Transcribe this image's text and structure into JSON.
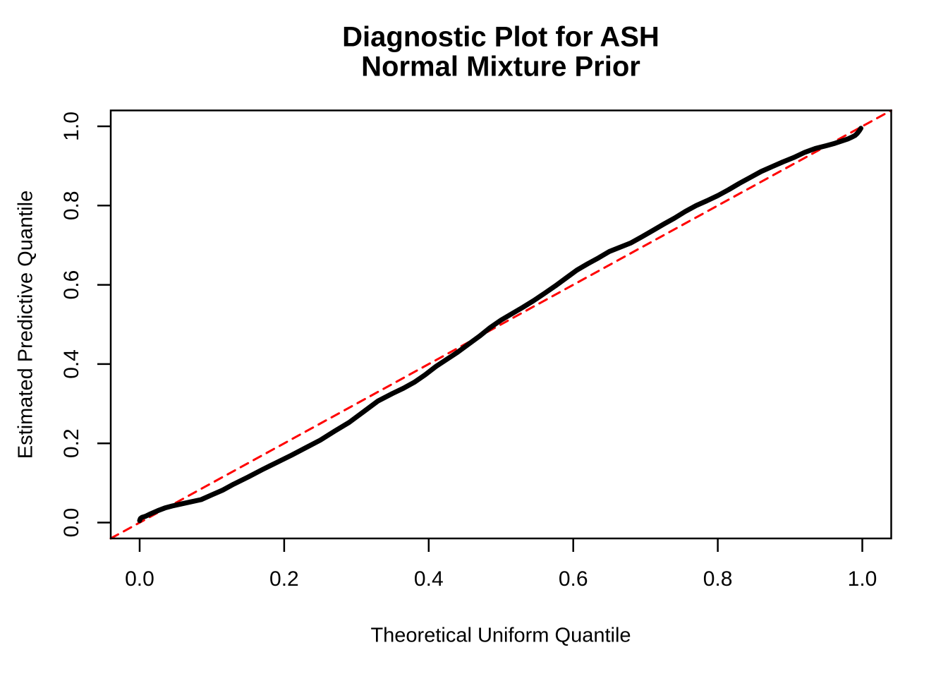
{
  "figure": {
    "background_color": "#ffffff",
    "title_line1": "Diagnostic Plot for ASH",
    "title_line2": "Normal Mixture Prior"
  },
  "chart_data": {
    "type": "line",
    "title": "Diagnostic Plot for ASH — Normal Mixture Prior",
    "title_lines": [
      "Diagnostic Plot for ASH",
      "Normal Mixture Prior"
    ],
    "xlabel": "Theoretical Uniform Quantile",
    "ylabel": "Estimated Predictive Quantile",
    "xlim": [
      -0.04,
      1.04
    ],
    "ylim": [
      -0.04,
      1.04
    ],
    "grid": false,
    "legend": "none",
    "x_ticks": [
      0.0,
      0.2,
      0.4,
      0.6,
      0.8,
      1.0
    ],
    "y_ticks": [
      0.0,
      0.2,
      0.4,
      0.6,
      0.8,
      1.0
    ],
    "x_tick_labels": [
      "0.0",
      "0.2",
      "0.4",
      "0.6",
      "0.8",
      "1.0"
    ],
    "y_tick_labels": [
      "0.0",
      "0.2",
      "0.4",
      "0.6",
      "0.8",
      "1.0"
    ],
    "axis_color": "#000000",
    "series": [
      {
        "name": "estimated-predictive-quantile-curve",
        "style": "solid",
        "color": "#000000",
        "stroke_width": 7,
        "points": [
          [
            0.0,
            0.005
          ],
          [
            0.001,
            0.01
          ],
          [
            0.003,
            0.013
          ],
          [
            0.008,
            0.016
          ],
          [
            0.015,
            0.022
          ],
          [
            0.025,
            0.03
          ],
          [
            0.035,
            0.037
          ],
          [
            0.045,
            0.042
          ],
          [
            0.055,
            0.046
          ],
          [
            0.07,
            0.052
          ],
          [
            0.085,
            0.058
          ],
          [
            0.1,
            0.07
          ],
          [
            0.115,
            0.082
          ],
          [
            0.13,
            0.097
          ],
          [
            0.15,
            0.115
          ],
          [
            0.17,
            0.134
          ],
          [
            0.19,
            0.152
          ],
          [
            0.21,
            0.17
          ],
          [
            0.23,
            0.189
          ],
          [
            0.25,
            0.208
          ],
          [
            0.27,
            0.231
          ],
          [
            0.29,
            0.253
          ],
          [
            0.31,
            0.28
          ],
          [
            0.33,
            0.307
          ],
          [
            0.35,
            0.326
          ],
          [
            0.365,
            0.339
          ],
          [
            0.38,
            0.354
          ],
          [
            0.395,
            0.373
          ],
          [
            0.41,
            0.394
          ],
          [
            0.425,
            0.412
          ],
          [
            0.44,
            0.43
          ],
          [
            0.455,
            0.45
          ],
          [
            0.47,
            0.47
          ],
          [
            0.485,
            0.492
          ],
          [
            0.5,
            0.511
          ],
          [
            0.515,
            0.527
          ],
          [
            0.53,
            0.543
          ],
          [
            0.545,
            0.56
          ],
          [
            0.56,
            0.578
          ],
          [
            0.575,
            0.597
          ],
          [
            0.59,
            0.617
          ],
          [
            0.605,
            0.637
          ],
          [
            0.62,
            0.653
          ],
          [
            0.635,
            0.668
          ],
          [
            0.65,
            0.684
          ],
          [
            0.665,
            0.695
          ],
          [
            0.68,
            0.706
          ],
          [
            0.695,
            0.721
          ],
          [
            0.71,
            0.737
          ],
          [
            0.725,
            0.753
          ],
          [
            0.74,
            0.768
          ],
          [
            0.755,
            0.785
          ],
          [
            0.77,
            0.8
          ],
          [
            0.785,
            0.812
          ],
          [
            0.8,
            0.825
          ],
          [
            0.815,
            0.84
          ],
          [
            0.83,
            0.856
          ],
          [
            0.845,
            0.871
          ],
          [
            0.86,
            0.886
          ],
          [
            0.875,
            0.898
          ],
          [
            0.89,
            0.91
          ],
          [
            0.905,
            0.921
          ],
          [
            0.92,
            0.934
          ],
          [
            0.935,
            0.944
          ],
          [
            0.95,
            0.951
          ],
          [
            0.962,
            0.957
          ],
          [
            0.972,
            0.963
          ],
          [
            0.98,
            0.968
          ],
          [
            0.986,
            0.973
          ],
          [
            0.99,
            0.977
          ],
          [
            0.993,
            0.982
          ],
          [
            0.996,
            0.989
          ],
          [
            0.998,
            0.995
          ]
        ]
      },
      {
        "name": "identity-reference-line",
        "style": "dashed",
        "color": "#FF0000",
        "stroke_width": 3,
        "dash": [
          12,
          9
        ],
        "points": [
          [
            -0.04,
            -0.04
          ],
          [
            1.04,
            1.04
          ]
        ]
      }
    ]
  }
}
